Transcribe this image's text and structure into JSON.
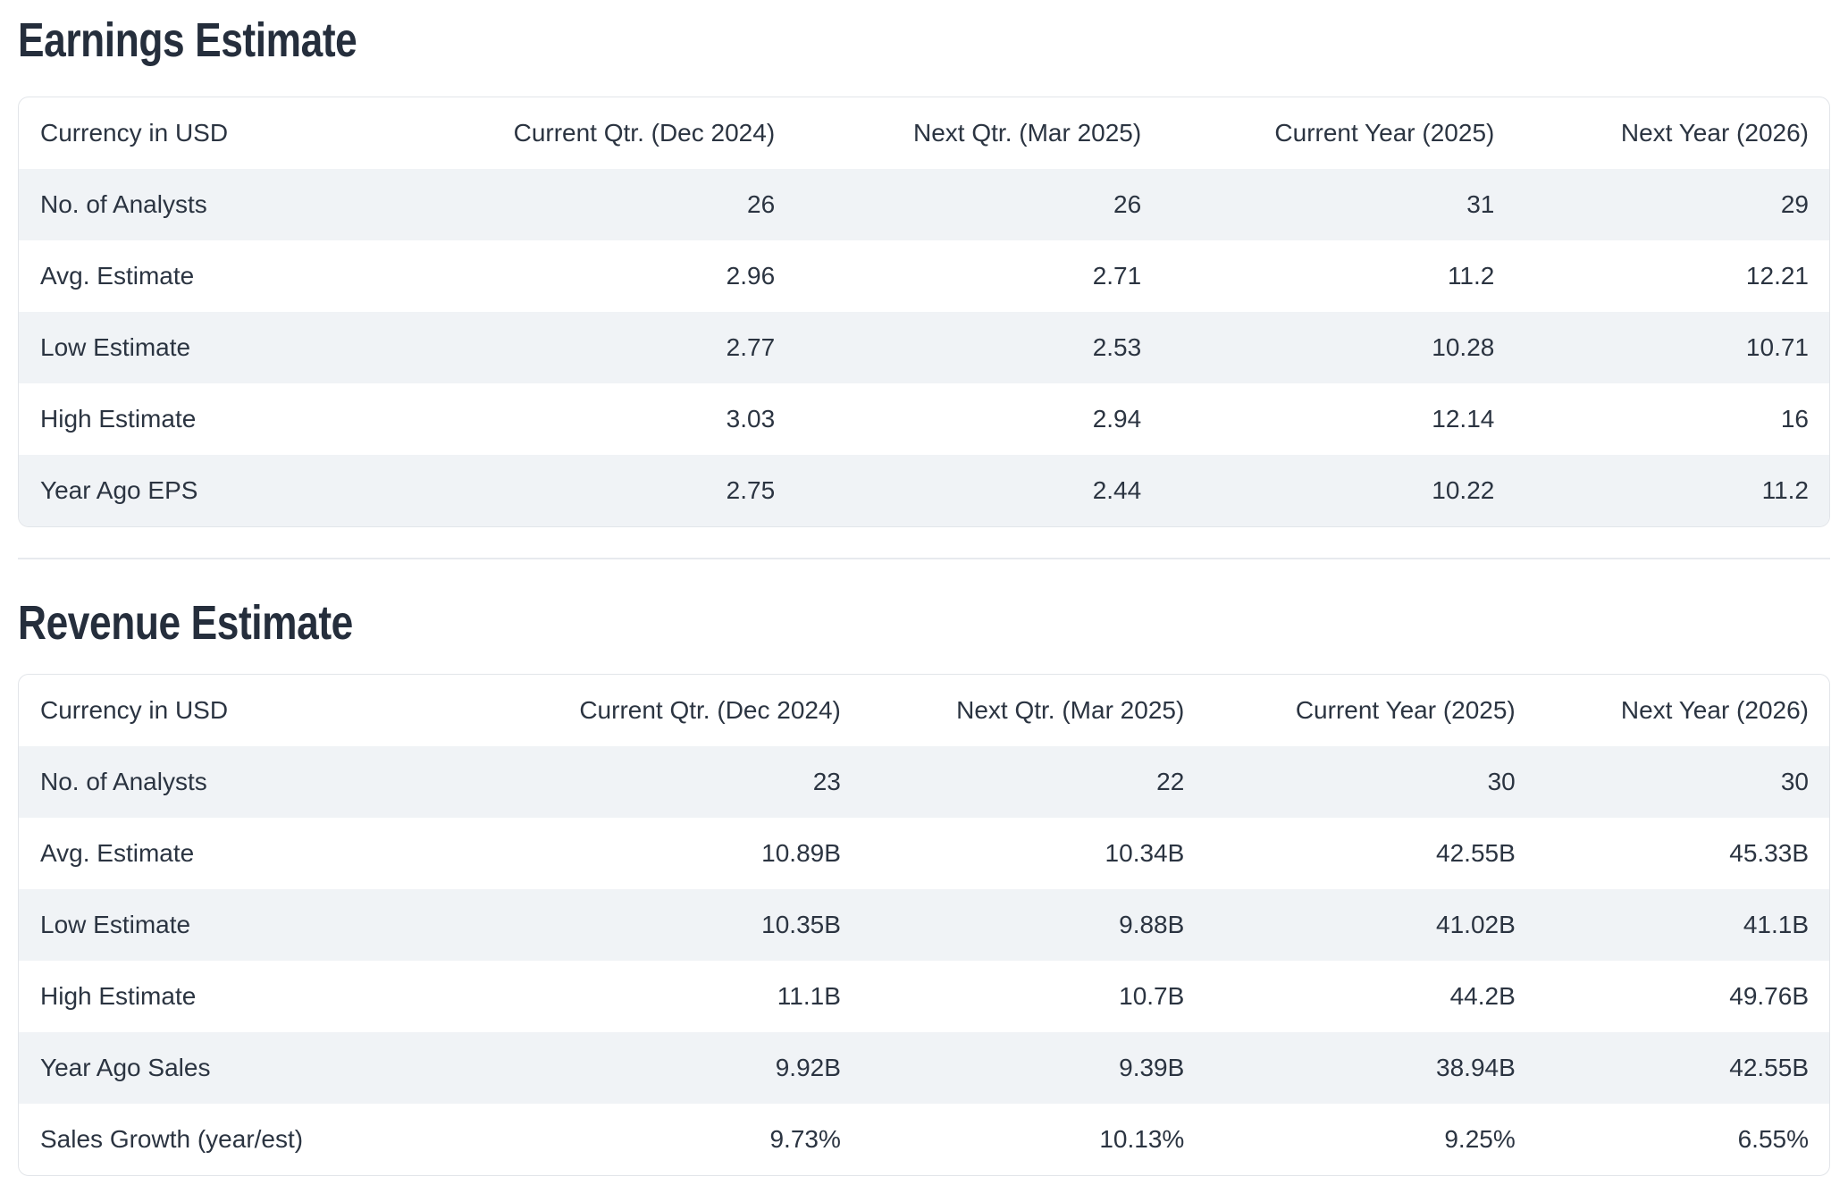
{
  "sections": [
    {
      "title": "Earnings Estimate",
      "headers": [
        "Currency in USD",
        "Current Qtr. (Dec 2024)",
        "Next Qtr. (Mar 2025)",
        "Current Year (2025)",
        "Next Year (2026)"
      ],
      "rows": [
        {
          "label": "No. of Analysts",
          "values": [
            "26",
            "26",
            "31",
            "29"
          ]
        },
        {
          "label": "Avg. Estimate",
          "values": [
            "2.96",
            "2.71",
            "11.2",
            "12.21"
          ]
        },
        {
          "label": "Low Estimate",
          "values": [
            "2.77",
            "2.53",
            "10.28",
            "10.71"
          ]
        },
        {
          "label": "High Estimate",
          "values": [
            "3.03",
            "2.94",
            "12.14",
            "16"
          ]
        },
        {
          "label": "Year Ago EPS",
          "values": [
            "2.75",
            "2.44",
            "10.22",
            "11.2"
          ]
        }
      ]
    },
    {
      "title": "Revenue Estimate",
      "headers": [
        "Currency in USD",
        "Current Qtr. (Dec 2024)",
        "Next Qtr. (Mar 2025)",
        "Current Year (2025)",
        "Next Year (2026)"
      ],
      "rows": [
        {
          "label": "No. of Analysts",
          "values": [
            "23",
            "22",
            "30",
            "30"
          ]
        },
        {
          "label": "Avg. Estimate",
          "values": [
            "10.89B",
            "10.34B",
            "42.55B",
            "45.33B"
          ]
        },
        {
          "label": "Low Estimate",
          "values": [
            "10.35B",
            "9.88B",
            "41.02B",
            "41.1B"
          ]
        },
        {
          "label": "High Estimate",
          "values": [
            "11.1B",
            "10.7B",
            "44.2B",
            "49.76B"
          ]
        },
        {
          "label": "Year Ago Sales",
          "values": [
            "9.92B",
            "9.39B",
            "38.94B",
            "42.55B"
          ]
        },
        {
          "label": "Sales Growth (year/est)",
          "values": [
            "9.73%",
            "10.13%",
            "9.25%",
            "6.55%"
          ]
        }
      ]
    }
  ],
  "colors": {
    "text": "#2b3441",
    "title": "#252e3c",
    "row_stripe": "#f0f3f6",
    "card_border": "#e2e5e9",
    "divider": "#e7eaee",
    "background": "#ffffff"
  }
}
